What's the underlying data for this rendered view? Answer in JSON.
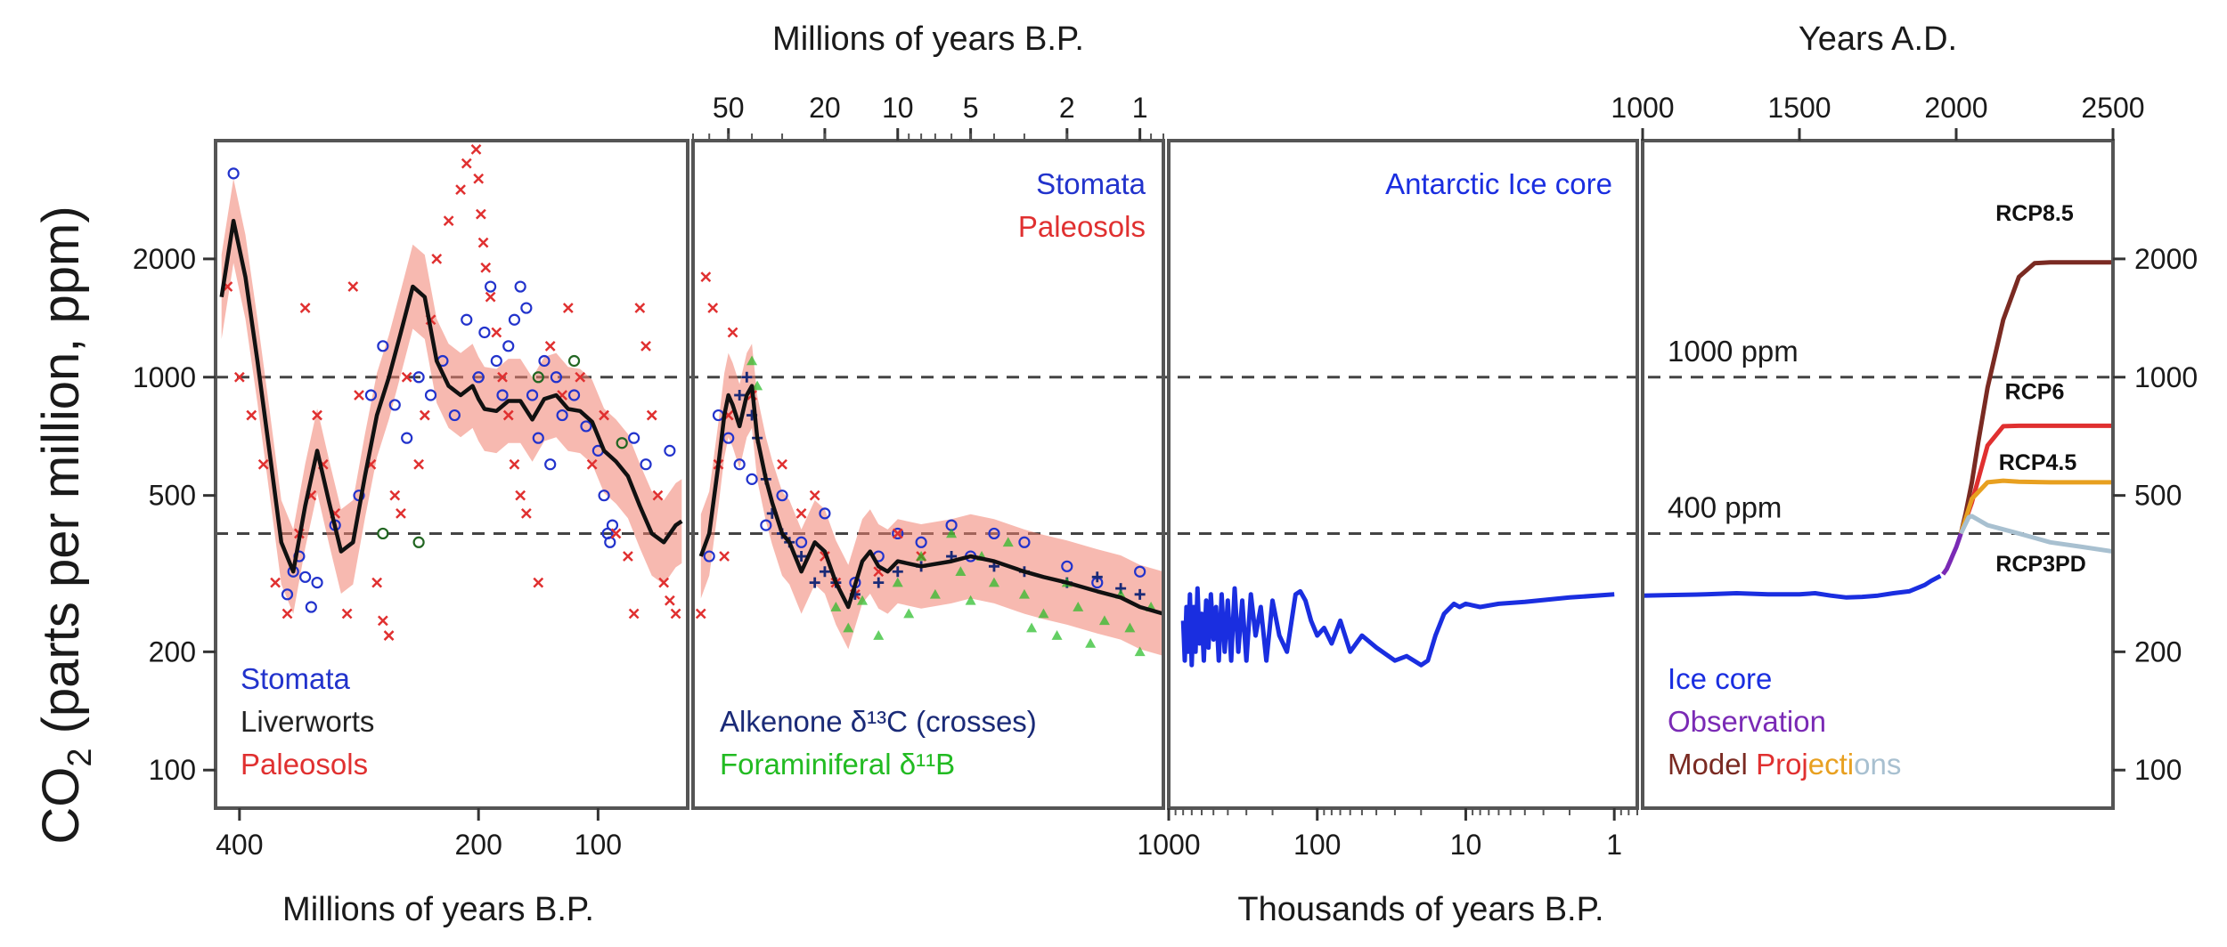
{
  "chart_data": {
    "type": "line",
    "scale": "log",
    "ylabel": "CO2 (parts per million, ppm)",
    "y_ticks": [
      100,
      200,
      500,
      1000,
      2000
    ],
    "ylim": [
      80,
      4000
    ],
    "reference_lines": [
      {
        "value": 1000,
        "label": "1000 ppm"
      },
      {
        "value": 400,
        "label": "400 ppm"
      }
    ],
    "panels": [
      {
        "id": "deep",
        "xlabel_bottom": "Millions of years B.P.",
        "x_ticks": [
          400,
          200,
          100
        ],
        "xlim": [
          420,
          25
        ],
        "legend": [
          {
            "text": "Stomata",
            "color": "#2233cc"
          },
          {
            "text": "Liverworts",
            "color": "#222222"
          },
          {
            "text": "Paleosols",
            "color": "#e03030"
          }
        ],
        "smooth_line": {
          "x": [
            415,
            405,
            395,
            385,
            375,
            365,
            355,
            345,
            335,
            325,
            315,
            305,
            295,
            285,
            275,
            265,
            255,
            245,
            235,
            225,
            215,
            205,
            200,
            195,
            185,
            175,
            165,
            155,
            145,
            135,
            125,
            115,
            105,
            95,
            85,
            75,
            65,
            55,
            45,
            35,
            30
          ],
          "y": [
            1600,
            2500,
            1800,
            1100,
            650,
            380,
            320,
            470,
            650,
            480,
            360,
            380,
            560,
            800,
            1000,
            1300,
            1700,
            1600,
            1100,
            950,
            900,
            950,
            880,
            830,
            820,
            870,
            870,
            780,
            880,
            900,
            830,
            820,
            770,
            650,
            610,
            560,
            470,
            400,
            380,
            420,
            430
          ]
        },
        "scatter_series": [
          {
            "name": "Stomata",
            "color": "#2233cc",
            "marker": "circle",
            "x": [
              405,
              360,
              355,
              350,
              345,
              340,
              335,
              320,
              300,
              290,
              280,
              270,
              260,
              250,
              240,
              230,
              220,
              210,
              200,
              195,
              190,
              185,
              180,
              175,
              170,
              165,
              160,
              155,
              150,
              145,
              140,
              135,
              130,
              120,
              110,
              100,
              95,
              92,
              90,
              88,
              70,
              60,
              40
            ],
            "y": [
              3300,
              280,
              320,
              350,
              310,
              260,
              300,
              420,
              500,
              900,
              1200,
              850,
              700,
              1000,
              900,
              1100,
              800,
              1400,
              1000,
              1300,
              1700,
              1100,
              900,
              1200,
              1400,
              1700,
              1500,
              900,
              700,
              1100,
              600,
              1000,
              800,
              900,
              750,
              650,
              500,
              400,
              380,
              420,
              700,
              600,
              650
            ]
          },
          {
            "name": "Liverworts",
            "color": "#226622",
            "marker": "circle",
            "x": [
              280,
              250,
              150,
              120,
              80
            ],
            "y": [
              400,
              380,
              1000,
              1100,
              680
            ]
          },
          {
            "name": "Paleosols",
            "color": "#e03030",
            "marker": "cross",
            "x": [
              410,
              400,
              390,
              380,
              370,
              360,
              350,
              345,
              340,
              335,
              330,
              320,
              310,
              305,
              300,
              290,
              285,
              280,
              275,
              270,
              265,
              260,
              250,
              245,
              240,
              235,
              225,
              215,
              210,
              205,
              202,
              200,
              198,
              196,
              194,
              190,
              185,
              180,
              175,
              170,
              165,
              160,
              150,
              140,
              130,
              125,
              115,
              105,
              95,
              85,
              75,
              70,
              65,
              60,
              55,
              50,
              45,
              40,
              35
            ],
            "y": [
              1700,
              1000,
              800,
              600,
              300,
              250,
              400,
              1500,
              500,
              800,
              600,
              450,
              250,
              1700,
              900,
              600,
              300,
              240,
              220,
              500,
              450,
              1000,
              600,
              800,
              1400,
              2000,
              2500,
              3000,
              3500,
              4200,
              3800,
              3200,
              2600,
              2200,
              1900,
              1600,
              1300,
              1000,
              800,
              600,
              500,
              450,
              300,
              1200,
              900,
              1500,
              1000,
              600,
              800,
              400,
              350,
              250,
              1500,
              1200,
              800,
              500,
              300,
              270,
              250
            ]
          }
        ]
      },
      {
        "id": "cenozoic",
        "xlabel_top": "Millions of years B.P.",
        "x_ticks": [
          50,
          20,
          10,
          5,
          2,
          1
        ],
        "xlim": [
          70,
          0.8
        ],
        "legend_top": [
          {
            "text": "Stomata",
            "color": "#2233cc"
          },
          {
            "text": "Paleosols",
            "color": "#e03030"
          }
        ],
        "legend_bottom": [
          {
            "text": "Alkenone δ¹³C (crosses)",
            "color": "#1a2a77"
          },
          {
            "text": "Foraminiferal δ¹¹B",
            "color": "#22bb22"
          }
        ],
        "smooth_line": {
          "x": [
            65,
            60,
            55,
            52,
            50,
            48,
            45,
            42,
            40,
            38,
            35,
            33,
            30,
            28,
            25,
            22,
            20,
            18,
            16,
            14,
            13,
            12,
            11,
            10,
            8,
            6,
            5,
            4,
            3,
            2.5,
            2,
            1.5,
            1.2,
            1,
            0.8
          ],
          "y": [
            350,
            400,
            600,
            800,
            900,
            850,
            750,
            900,
            950,
            700,
            550,
            480,
            400,
            380,
            320,
            380,
            360,
            300,
            260,
            340,
            360,
            330,
            320,
            340,
            330,
            340,
            350,
            340,
            320,
            310,
            300,
            285,
            275,
            260,
            250
          ]
        },
        "scatter_series": [
          {
            "name": "Stomata",
            "color": "#2233cc",
            "marker": "circle",
            "x": [
              60,
              55,
              50,
              45,
              40,
              35,
              30,
              25,
              20,
              15,
              12,
              10,
              8,
              6,
              5,
              4,
              3,
              2,
              1.5,
              1
            ],
            "y": [
              350,
              800,
              700,
              600,
              550,
              420,
              500,
              380,
              450,
              300,
              350,
              400,
              380,
              420,
              350,
              400,
              380,
              330,
              300,
              320
            ]
          },
          {
            "name": "Paleosols",
            "color": "#e03030",
            "marker": "cross",
            "x": [
              65,
              62,
              58,
              55,
              52,
              50,
              48,
              40,
              30,
              25,
              22,
              20,
              18,
              15,
              12,
              10,
              8
            ],
            "y": [
              250,
              1800,
              1500,
              600,
              350,
              800,
              1300,
              900,
              600,
              450,
              500,
              350,
              300,
              280,
              320,
              400,
              350
            ]
          },
          {
            "name": "Alkenone δ13C (crosses)",
            "color": "#1a2a77",
            "marker": "plus",
            "x": [
              45,
              42,
              40,
              38,
              35,
              33,
              30,
              28,
              25,
              22,
              20,
              18,
              15,
              12,
              10,
              8,
              6,
              4,
              3,
              2,
              1.5,
              1.2,
              1
            ],
            "y": [
              900,
              1000,
              800,
              700,
              550,
              450,
              400,
              380,
              350,
              300,
              320,
              300,
              280,
              300,
              320,
              330,
              350,
              330,
              320,
              300,
              310,
              290,
              280
            ]
          },
          {
            "name": "Foraminiferal δ11B",
            "color": "#22bb22",
            "marker": "triangle",
            "x": [
              40,
              38,
              18,
              16,
              14,
              12,
              10,
              9,
              8,
              7,
              6,
              5.5,
              5,
              4.5,
              4,
              3.5,
              3,
              2.8,
              2.5,
              2.2,
              2,
              1.8,
              1.6,
              1.4,
              1.2,
              1.1,
              1,
              0.9
            ],
            "y": [
              1100,
              950,
              260,
              230,
              270,
              220,
              300,
              250,
              350,
              280,
              400,
              320,
              270,
              350,
              300,
              380,
              280,
              230,
              250,
              220,
              300,
              260,
              210,
              240,
              280,
              230,
              200,
              260
            ]
          }
        ]
      },
      {
        "id": "ice-core",
        "xlabel_bottom": "Thousands of years B.P.",
        "x_ticks": [
          1000,
          100,
          10,
          1
        ],
        "xlim": [
          1000,
          0.7
        ],
        "legend": [
          {
            "text": "Antarctic Ice core",
            "color": "#1a2ee0"
          }
        ],
        "series": [
          {
            "name": "Antarctic Ice core",
            "color": "#1a2ee0",
            "x": [
              800,
              780,
              760,
              740,
              720,
              700,
              680,
              660,
              640,
              620,
              600,
              580,
              560,
              540,
              520,
              500,
              480,
              460,
              440,
              420,
              400,
              380,
              360,
              340,
              320,
              300,
              280,
              260,
              240,
              220,
              200,
              180,
              160,
              140,
              130,
              120,
              110,
              100,
              90,
              80,
              70,
              60,
              50,
              40,
              30,
              25,
              20,
              18,
              16,
              14,
              12,
              11,
              10,
              8,
              6,
              4,
              2,
              1
            ],
            "y": [
              240,
              190,
              260,
              200,
              280,
              185,
              260,
              200,
              290,
              210,
              250,
              190,
              270,
              205,
              280,
              215,
              260,
              190,
              280,
              200,
              270,
              190,
              290,
              200,
              270,
              190,
              280,
              220,
              260,
              190,
              270,
              220,
              200,
              280,
              285,
              270,
              240,
              220,
              230,
              210,
              240,
              200,
              220,
              205,
              190,
              195,
              185,
              190,
              220,
              250,
              265,
              260,
              265,
              260,
              265,
              268,
              275,
              280
            ]
          }
        ]
      },
      {
        "id": "recent",
        "xlabel_top": "Years A.D.",
        "x_ticks": [
          1000,
          1500,
          2000,
          2500
        ],
        "xlim": [
          1000,
          2500
        ],
        "legend": [
          {
            "text": "Ice core",
            "color": "#1a2ee0"
          },
          {
            "text": "Observation",
            "color": "#7a2ab5"
          },
          {
            "text": "Model Projections",
            "colors": [
              "#7a2a22",
              "#e03030",
              "#e8a020",
              "#a8c0d0"
            ]
          }
        ],
        "series": [
          {
            "name": "Ice core",
            "color": "#1a2ee0",
            "x": [
              1000,
              1100,
              1200,
              1300,
              1400,
              1500,
              1550,
              1600,
              1650,
              1700,
              1750,
              1800,
              1850,
              1900,
              1920,
              1950
            ],
            "y": [
              278,
              279,
              280,
              282,
              280,
              280,
              282,
              278,
              275,
              276,
              278,
              282,
              285,
              296,
              303,
              312
            ]
          },
          {
            "name": "Observation",
            "color": "#7a2ab5",
            "x": [
              1958,
              1970,
              1980,
              1990,
              2000,
              2010,
              2015
            ],
            "y": [
              315,
              325,
              339,
              354,
              369,
              389,
              400
            ]
          },
          {
            "name": "RCP8.5",
            "color": "#7a2a22",
            "x": [
              2015,
              2030,
              2050,
              2070,
              2100,
              2150,
              2200,
              2250,
              2300,
              2400,
              2500
            ],
            "y": [
              400,
              450,
              540,
              680,
              940,
              1400,
              1800,
              1950,
              1960,
              1960,
              1960
            ]
          },
          {
            "name": "RCP6",
            "color": "#e03030",
            "x": [
              2015,
              2050,
              2100,
              2150,
              2200,
              2300,
              2400,
              2500
            ],
            "y": [
              400,
              480,
              670,
              750,
              752,
              752,
              752,
              752
            ]
          },
          {
            "name": "RCP4.5",
            "color": "#e8a020",
            "x": [
              2015,
              2050,
              2100,
              2150,
              2200,
              2300,
              2400,
              2500
            ],
            "y": [
              400,
              490,
              540,
              545,
              542,
              540,
              540,
              540
            ]
          },
          {
            "name": "RCP3PD",
            "color": "#a8c0d0",
            "x": [
              2015,
              2040,
              2050,
              2100,
              2200,
              2300,
              2400,
              2500
            ],
            "y": [
              400,
              440,
              443,
              420,
              400,
              380,
              370,
              360
            ]
          }
        ],
        "series_labels": [
          "RCP8.5",
          "RCP6",
          "RCP4.5",
          "RCP3PD"
        ]
      }
    ]
  }
}
